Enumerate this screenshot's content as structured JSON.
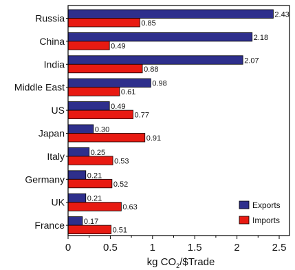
{
  "chart_data": {
    "type": "bar",
    "orientation": "horizontal",
    "categories": [
      "Russia",
      "China",
      "India",
      "Middle East",
      "US",
      "Japan",
      "Italy",
      "Germany",
      "UK",
      "France"
    ],
    "series": [
      {
        "name": "Exports",
        "color": "#2e2f8c",
        "values": [
          2.43,
          2.18,
          2.07,
          0.98,
          0.49,
          0.3,
          0.25,
          0.21,
          0.21,
          0.17
        ]
      },
      {
        "name": "Imports",
        "color": "#e81a12",
        "values": [
          0.85,
          0.49,
          0.88,
          0.61,
          0.77,
          0.91,
          0.53,
          0.52,
          0.63,
          0.51
        ]
      }
    ],
    "value_labels": [
      [
        "2.43",
        "2.18",
        "2.07",
        "0.98",
        "0.49",
        "0.30",
        "0.25",
        "0.21",
        "0.21",
        "0.17"
      ],
      [
        "0.85",
        "0.49",
        "0.88",
        "0.61",
        "0.77",
        "0.91",
        "0.53",
        "0.52",
        "0.63",
        "0.51"
      ]
    ],
    "xlim": [
      0,
      2.75
    ],
    "xticks": [
      0,
      0.5,
      1,
      1.5,
      2,
      2.5
    ],
    "xtick_labels": [
      "0",
      "0.5",
      "1",
      "1.5",
      "2",
      "2.5"
    ],
    "xlabel": {
      "pre": "kg CO",
      "sub": "2",
      "post": "/$Trade"
    },
    "ylabel": "",
    "title": "",
    "grid": false,
    "legend_position": "bottom-right"
  }
}
